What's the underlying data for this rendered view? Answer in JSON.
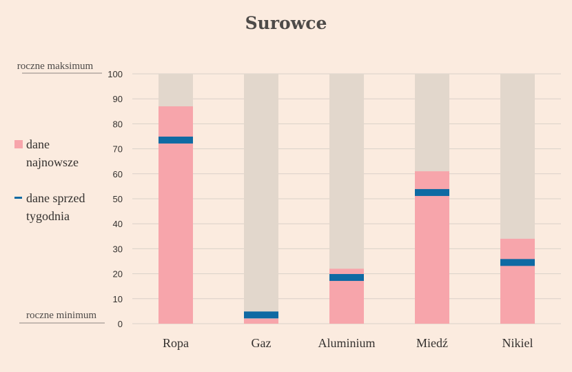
{
  "chart_data": {
    "type": "bar",
    "title": "Surowce",
    "categories": [
      "Ropa",
      "Gaz",
      "Aluminium",
      "Miedź",
      "Nikiel"
    ],
    "series": [
      {
        "name": "dane najnowsze",
        "values": [
          87,
          2,
          22,
          61,
          34
        ]
      },
      {
        "name": "dane sprzed tygodnia",
        "values": [
          73.5,
          3.5,
          18.5,
          52.5,
          24.5
        ]
      }
    ],
    "range_max": 100,
    "ylim": [
      0,
      100
    ],
    "yticks": [
      0,
      10,
      20,
      30,
      40,
      50,
      60,
      70,
      80,
      90,
      100
    ],
    "ytick_labels": [
      "0",
      "10",
      "20",
      "30",
      "40",
      "50",
      "60",
      "70",
      "80",
      "90",
      "100"
    ],
    "range_labels": {
      "top": "roczne maksimum",
      "bottom": "roczne minimum"
    },
    "legend": {
      "placement": "left",
      "items": [
        {
          "lines": [
            "dane",
            "najnowsze"
          ],
          "marker": "square",
          "color": "#f7a5ab"
        },
        {
          "lines": [
            "dane sprzed",
            "tygodnia"
          ],
          "marker": "dash",
          "color": "#0f6aa3"
        }
      ]
    },
    "grid": true,
    "colors": {
      "background": "#fbebdf",
      "range_bar": "#e2d7cc",
      "latest": "#f7a5ab",
      "week_ago": "#0f6aa3",
      "grid": "#d9d0c8"
    }
  }
}
